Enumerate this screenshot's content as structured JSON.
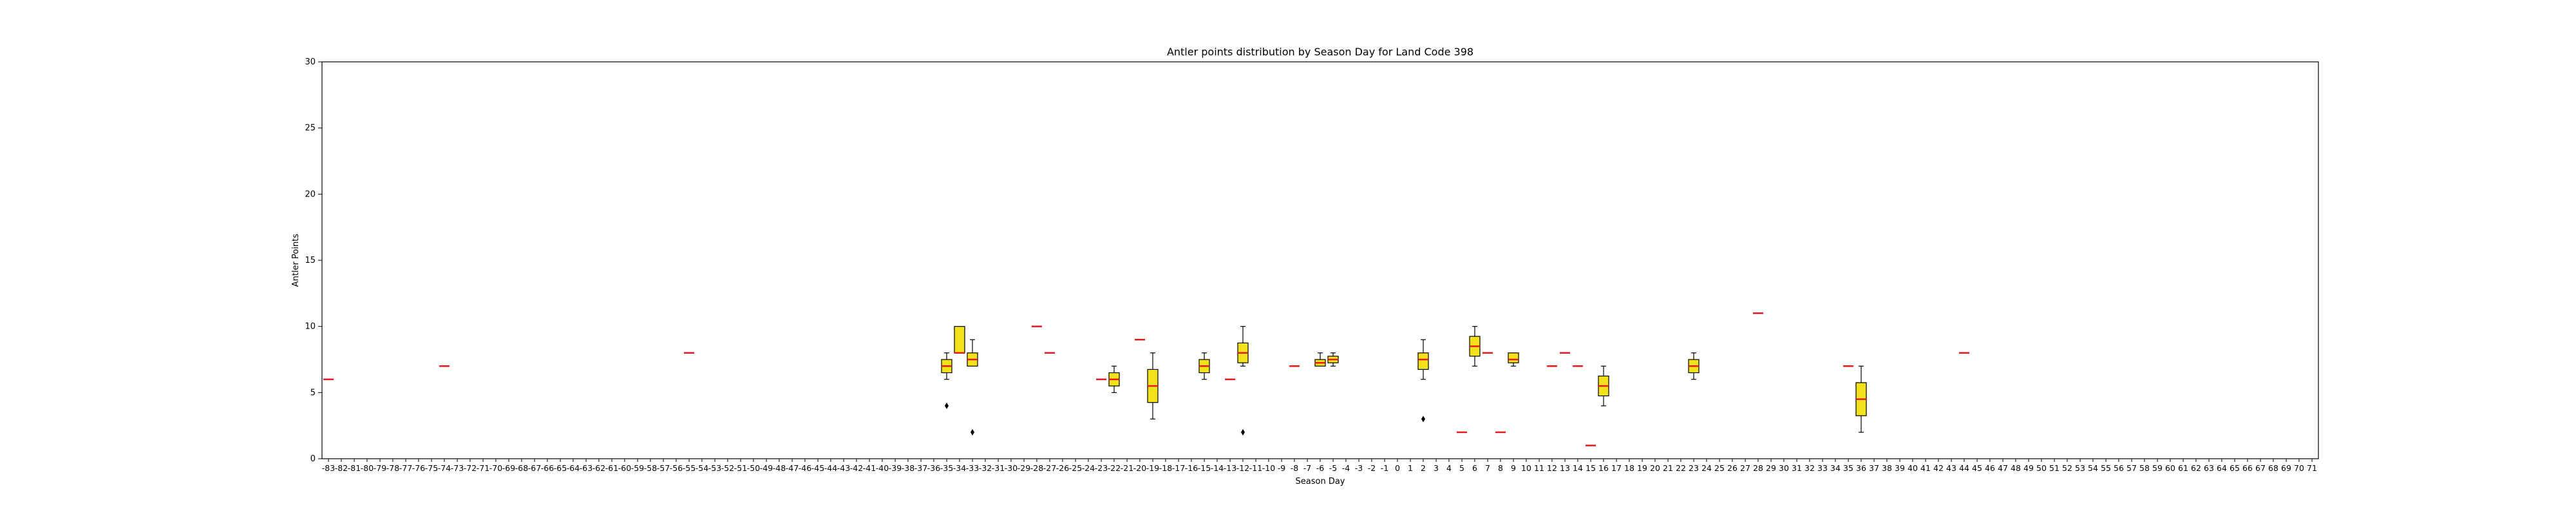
{
  "chart_data": {
    "type": "box",
    "title": "Antler points distribution by Season Day for Land Code 398",
    "xlabel": "Season Day",
    "ylabel": "Antler Points",
    "x_range": [
      -83,
      71
    ],
    "ylim": [
      0,
      30
    ],
    "yticks": [
      0,
      5,
      10,
      15,
      20,
      25,
      30
    ],
    "grid": false,
    "legend": "none",
    "colors": {
      "box_fill": "#f2e21b",
      "median": "#e41a1c",
      "whisker": "#000000",
      "flier": "#000000"
    },
    "boxes": [
      {
        "day": -83,
        "q1": 6,
        "median": 6,
        "q3": 6,
        "whisker_low": 6,
        "whisker_high": 6,
        "fliers": []
      },
      {
        "day": -74,
        "q1": 7,
        "median": 7,
        "q3": 7,
        "whisker_low": 7,
        "whisker_high": 7,
        "fliers": []
      },
      {
        "day": -55,
        "q1": 8,
        "median": 8,
        "q3": 8,
        "whisker_low": 8,
        "whisker_high": 8,
        "fliers": []
      },
      {
        "day": -35,
        "q1": 6.5,
        "median": 7,
        "q3": 7.5,
        "whisker_low": 6,
        "whisker_high": 8,
        "fliers": [
          4
        ]
      },
      {
        "day": -34,
        "q1": 8,
        "median": 8,
        "q3": 10,
        "whisker_low": 8,
        "whisker_high": 10,
        "fliers": []
      },
      {
        "day": -33,
        "q1": 7,
        "median": 7.5,
        "q3": 8,
        "whisker_low": 7,
        "whisker_high": 9,
        "fliers": [
          2
        ]
      },
      {
        "day": -28,
        "q1": 10,
        "median": 10,
        "q3": 10,
        "whisker_low": 10,
        "whisker_high": 10,
        "fliers": []
      },
      {
        "day": -27,
        "q1": 8,
        "median": 8,
        "q3": 8,
        "whisker_low": 8,
        "whisker_high": 8,
        "fliers": []
      },
      {
        "day": -23,
        "q1": 6,
        "median": 6,
        "q3": 6,
        "whisker_low": 6,
        "whisker_high": 6,
        "fliers": []
      },
      {
        "day": -22,
        "q1": 5.5,
        "median": 6,
        "q3": 6.5,
        "whisker_low": 5,
        "whisker_high": 7,
        "fliers": []
      },
      {
        "day": -20,
        "q1": 9,
        "median": 9,
        "q3": 9,
        "whisker_low": 9,
        "whisker_high": 9,
        "fliers": []
      },
      {
        "day": -19,
        "q1": 4.25,
        "median": 5.5,
        "q3": 6.75,
        "whisker_low": 3,
        "whisker_high": 8,
        "fliers": []
      },
      {
        "day": -15,
        "q1": 6.5,
        "median": 7,
        "q3": 7.5,
        "whisker_low": 6,
        "whisker_high": 8,
        "fliers": []
      },
      {
        "day": -13,
        "q1": 6,
        "median": 6,
        "q3": 6,
        "whisker_low": 6,
        "whisker_high": 6,
        "fliers": []
      },
      {
        "day": -12,
        "q1": 7.25,
        "median": 8,
        "q3": 8.75,
        "whisker_low": 7,
        "whisker_high": 10,
        "fliers": [
          2
        ]
      },
      {
        "day": -8,
        "q1": 7,
        "median": 7,
        "q3": 7,
        "whisker_low": 7,
        "whisker_high": 7,
        "fliers": []
      },
      {
        "day": -6,
        "q1": 7,
        "median": 7.25,
        "q3": 7.5,
        "whisker_low": 7,
        "whisker_high": 8,
        "fliers": []
      },
      {
        "day": -5,
        "q1": 7.25,
        "median": 7.5,
        "q3": 7.75,
        "whisker_low": 7,
        "whisker_high": 8,
        "fliers": []
      },
      {
        "day": 2,
        "q1": 6.75,
        "median": 7.5,
        "q3": 8,
        "whisker_low": 6,
        "whisker_high": 9,
        "fliers": [
          3
        ]
      },
      {
        "day": 5,
        "q1": 2,
        "median": 2,
        "q3": 2,
        "whisker_low": 2,
        "whisker_high": 2,
        "fliers": []
      },
      {
        "day": 6,
        "q1": 7.75,
        "median": 8.5,
        "q3": 9.25,
        "whisker_low": 7,
        "whisker_high": 10,
        "fliers": []
      },
      {
        "day": 7,
        "q1": 8,
        "median": 8,
        "q3": 8,
        "whisker_low": 8,
        "whisker_high": 8,
        "fliers": []
      },
      {
        "day": 8,
        "q1": 2,
        "median": 2,
        "q3": 2,
        "whisker_low": 2,
        "whisker_high": 2,
        "fliers": []
      },
      {
        "day": 9,
        "q1": 7.25,
        "median": 7.5,
        "q3": 8,
        "whisker_low": 7,
        "whisker_high": 8,
        "fliers": []
      },
      {
        "day": 12,
        "q1": 7,
        "median": 7,
        "q3": 7,
        "whisker_low": 7,
        "whisker_high": 7,
        "fliers": []
      },
      {
        "day": 13,
        "q1": 8,
        "median": 8,
        "q3": 8,
        "whisker_low": 8,
        "whisker_high": 8,
        "fliers": []
      },
      {
        "day": 14,
        "q1": 7,
        "median": 7,
        "q3": 7,
        "whisker_low": 7,
        "whisker_high": 7,
        "fliers": []
      },
      {
        "day": 15,
        "q1": 1,
        "median": 1,
        "q3": 1,
        "whisker_low": 1,
        "whisker_high": 1,
        "fliers": []
      },
      {
        "day": 16,
        "q1": 4.75,
        "median": 5.5,
        "q3": 6.25,
        "whisker_low": 4,
        "whisker_high": 7,
        "fliers": []
      },
      {
        "day": 23,
        "q1": 6.5,
        "median": 7,
        "q3": 7.5,
        "whisker_low": 6,
        "whisker_high": 8,
        "fliers": []
      },
      {
        "day": 28,
        "q1": 11,
        "median": 11,
        "q3": 11,
        "whisker_low": 11,
        "whisker_high": 11,
        "fliers": []
      },
      {
        "day": 35,
        "q1": 7,
        "median": 7,
        "q3": 7,
        "whisker_low": 7,
        "whisker_high": 7,
        "fliers": []
      },
      {
        "day": 36,
        "q1": 3.25,
        "median": 4.5,
        "q3": 5.75,
        "whisker_low": 2,
        "whisker_high": 7,
        "fliers": []
      },
      {
        "day": 44,
        "q1": 8,
        "median": 8,
        "q3": 8,
        "whisker_low": 8,
        "whisker_high": 8,
        "fliers": []
      }
    ]
  }
}
